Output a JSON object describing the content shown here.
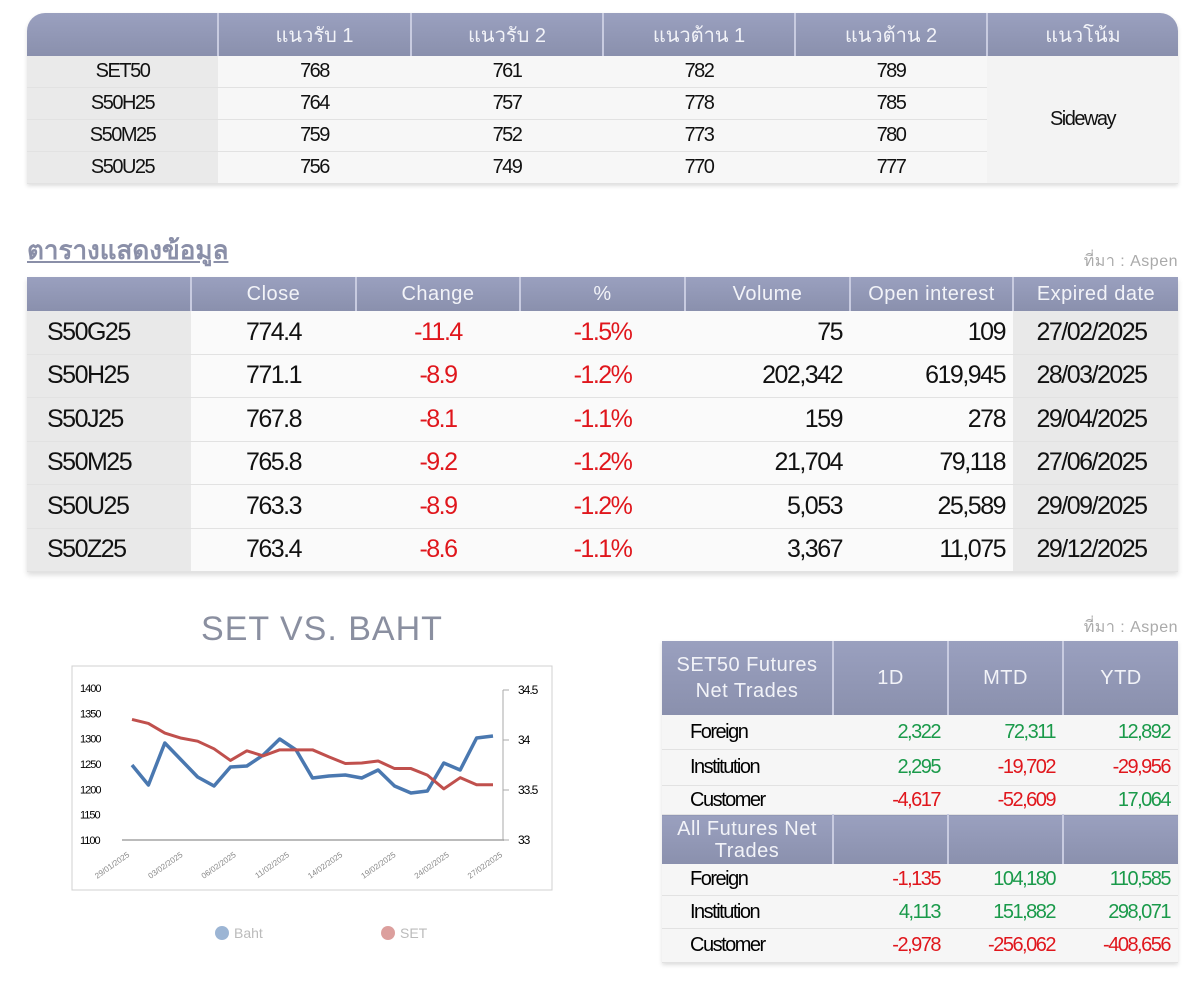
{
  "levels": {
    "headers": [
      "",
      "แนวรับ 1",
      "แนวรับ 2",
      "แนวต้าน 1",
      "แนวต้าน 2",
      "แนวโน้ม"
    ],
    "rows": [
      [
        "SET50",
        "768",
        "761",
        "782",
        "789"
      ],
      [
        "S50H25",
        "764",
        "757",
        "778",
        "785"
      ],
      [
        "S50M25",
        "759",
        "752",
        "773",
        "780"
      ],
      [
        "S50U25",
        "756",
        "749",
        "770",
        "777"
      ]
    ],
    "trend": "Sideway"
  },
  "data_section": {
    "title": "ตารางแสดงข้อมูล",
    "source": "ที่มา : Aspen",
    "headers": [
      "",
      "Close",
      "Change",
      "%",
      "Volume",
      "Open interest",
      "Expired date"
    ],
    "rows": [
      [
        "S50G25",
        "774.4",
        "-11.4",
        "-1.5%",
        "75",
        "109",
        "27/02/2025"
      ],
      [
        "S50H25",
        "771.1",
        "-8.9",
        "-1.2%",
        "202,342",
        "619,945",
        "28/03/2025"
      ],
      [
        "S50J25",
        "767.8",
        "-8.1",
        "-1.1%",
        "159",
        "278",
        "29/04/2025"
      ],
      [
        "S50M25",
        "765.8",
        "-9.2",
        "-1.2%",
        "21,704",
        "79,118",
        "27/06/2025"
      ],
      [
        "S50U25",
        "763.3",
        "-8.9",
        "-1.2%",
        "5,053",
        "25,589",
        "29/09/2025"
      ],
      [
        "S50Z25",
        "763.4",
        "-8.6",
        "-1.1%",
        "3,367",
        "11,075",
        "29/12/2025"
      ]
    ]
  },
  "net_trades": {
    "source": "ที่มา : Aspen",
    "headers": [
      "SET50 Futures Net Trades",
      "1D",
      "MTD",
      "YTD"
    ],
    "rows": [
      [
        "Foreign",
        "2,322",
        "72,311",
        "12,892"
      ],
      [
        "Institution",
        "2,295",
        "-19,702",
        "-29,956"
      ],
      [
        "Customer",
        "-4,617",
        "-52,609",
        "17,064"
      ]
    ],
    "header2": "All Futures Net Trades",
    "rows2": [
      [
        "Foreign",
        "-1,135",
        "104,180",
        "110,585"
      ],
      [
        "Institution",
        "4,113",
        "151,882",
        "298,071"
      ],
      [
        "Customer",
        "-2,978",
        "-256,062",
        "-408,656"
      ]
    ]
  },
  "colors": {
    "positive": "#1a9a4a",
    "negative": "#e0161c",
    "header": "#8a90ad",
    "baht": "#4a78b0",
    "set": "#c0504d"
  },
  "chart_data": {
    "type": "line",
    "title": "SET VS. BAHT",
    "x_ticks": [
      "29/01/2025",
      "03/02/2025",
      "06/02/2025",
      "11/02/2025",
      "14/02/2025",
      "19/02/2025",
      "24/02/2025",
      "27/02/2025"
    ],
    "y_left": {
      "range": [
        1100,
        1400
      ],
      "ticks": [
        "1400",
        "1350",
        "1300",
        "1250",
        "1200",
        "1150",
        "1100"
      ]
    },
    "y_right": {
      "range": [
        33,
        34.5
      ],
      "ticks": [
        "34.5",
        "34",
        "33.5",
        "33"
      ]
    },
    "legend": "bottom",
    "series": [
      {
        "name": "Baht",
        "axis": "right",
        "color": "#4a78b0",
        "values": [
          33.75,
          33.55,
          33.97,
          33.8,
          33.63,
          33.54,
          33.73,
          33.74,
          33.85,
          34.01,
          33.9,
          33.62,
          33.64,
          33.65,
          33.62,
          33.7,
          33.54,
          33.47,
          33.49,
          33.77,
          33.7,
          34.02,
          34.04
        ]
      },
      {
        "name": "SET",
        "axis": "left",
        "color": "#c0504d",
        "values": [
          1338,
          1330,
          1311,
          1301,
          1295,
          1280,
          1257,
          1276,
          1266,
          1278,
          1278,
          1278,
          1264,
          1251,
          1252,
          1256,
          1241,
          1241,
          1228,
          1201,
          1223,
          1209,
          1209
        ]
      }
    ]
  }
}
